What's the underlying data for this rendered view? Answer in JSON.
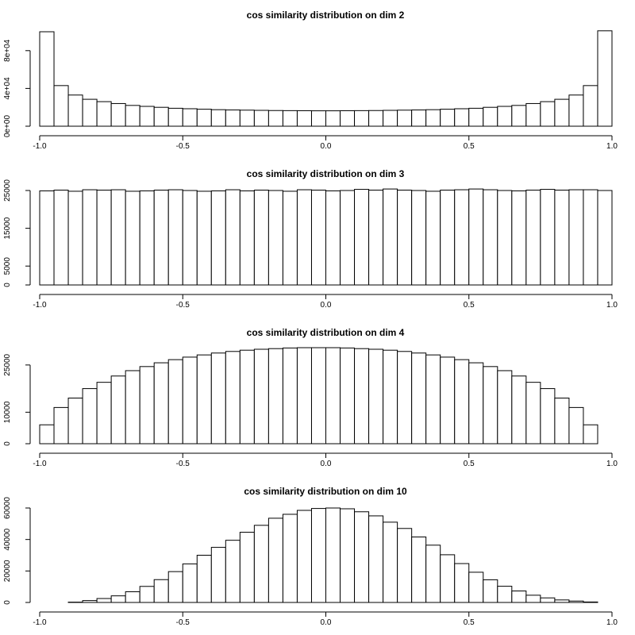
{
  "chart_data": [
    {
      "type": "bar",
      "title": "cos similarity distribution on dim 2",
      "xlim": [
        -1,
        1
      ],
      "ylim": [
        0,
        100000
      ],
      "bin_width": 0.05,
      "x_ticks": [
        -1,
        -0.5,
        0,
        0.5,
        1
      ],
      "x_tick_labels": [
        "-1.0",
        "-0.5",
        "0.0",
        "0.5",
        "1.0"
      ],
      "y_ticks": [
        0,
        40000,
        80000
      ],
      "y_tick_labels": [
        "0e+00",
        "4e+04",
        "8e+04"
      ],
      "values": [
        100000,
        43000,
        33000,
        28500,
        26000,
        24000,
        22000,
        21000,
        20000,
        19000,
        18500,
        18000,
        17500,
        17200,
        17000,
        16800,
        16600,
        16500,
        16400,
        16300,
        16300,
        16400,
        16500,
        16600,
        16800,
        17000,
        17200,
        17500,
        18000,
        18500,
        19000,
        20000,
        21000,
        22000,
        24000,
        26000,
        28500,
        33000,
        43000,
        101000
      ]
    },
    {
      "type": "bar",
      "title": "cos similarity distribution on dim 3",
      "xlim": [
        -1,
        1
      ],
      "ylim": [
        0,
        25000
      ],
      "bin_width": 0.05,
      "x_ticks": [
        -1,
        -0.5,
        0,
        0.5,
        1
      ],
      "x_tick_labels": [
        "-1.0",
        "-0.5",
        "0.0",
        "0.5",
        "1.0"
      ],
      "y_ticks": [
        0,
        5000,
        15000,
        25000
      ],
      "y_tick_labels": [
        "0",
        "5000",
        "15000",
        "25000"
      ],
      "values": [
        24900,
        25100,
        24800,
        25200,
        25100,
        25200,
        24800,
        24900,
        25100,
        25200,
        25000,
        24800,
        24900,
        25200,
        24900,
        25100,
        25000,
        24800,
        25200,
        25100,
        24900,
        25000,
        25300,
        25100,
        25400,
        25100,
        25000,
        24800,
        25100,
        25200,
        25400,
        25200,
        25000,
        24900,
        25100,
        25300,
        25100,
        25200,
        25200,
        25000
      ]
    },
    {
      "type": "bar",
      "title": "cos similarity distribution on dim 4",
      "xlim": [
        -1,
        1
      ],
      "ylim": [
        0,
        30000
      ],
      "bin_width": 0.05,
      "x_ticks": [
        -1,
        -0.5,
        0,
        0.5,
        1
      ],
      "x_tick_labels": [
        "-1.0",
        "-0.5",
        "0.0",
        "0.5",
        "1.0"
      ],
      "y_ticks": [
        0,
        10000,
        25000
      ],
      "y_tick_labels": [
        "0",
        "10000",
        "25000"
      ],
      "values": [
        6000,
        11500,
        14500,
        17500,
        19500,
        21500,
        23200,
        24500,
        25700,
        26700,
        27500,
        28200,
        28800,
        29300,
        29700,
        30000,
        30200,
        30400,
        30500,
        30500,
        30500,
        30400,
        30200,
        30000,
        29700,
        29300,
        28800,
        28200,
        27500,
        26700,
        25700,
        24500,
        23200,
        21500,
        19500,
        17500,
        14500,
        11500,
        6000,
        0
      ]
    },
    {
      "type": "bar",
      "title": "cos similarity distribution on dim 10",
      "xlim": [
        -1,
        1
      ],
      "ylim": [
        0,
        60000
      ],
      "bin_width": 0.05,
      "x_ticks": [
        -1,
        -0.5,
        0,
        0.5,
        1
      ],
      "x_tick_labels": [
        "-1.0",
        "-0.5",
        "0.0",
        "0.5",
        "1.0"
      ],
      "y_ticks": [
        0,
        20000,
        40000,
        60000
      ],
      "y_tick_labels": [
        "0",
        "20000",
        "40000",
        "60000"
      ],
      "values": [
        0,
        0,
        200,
        1200,
        2500,
        4200,
        6800,
        10200,
        14500,
        19600,
        24500,
        30000,
        35000,
        39500,
        44600,
        49000,
        53500,
        56000,
        58500,
        59700,
        60000,
        59500,
        57600,
        55000,
        51000,
        47000,
        41600,
        36400,
        30300,
        24700,
        19200,
        14400,
        10300,
        7300,
        4600,
        2900,
        1600,
        900,
        300,
        0
      ]
    }
  ]
}
